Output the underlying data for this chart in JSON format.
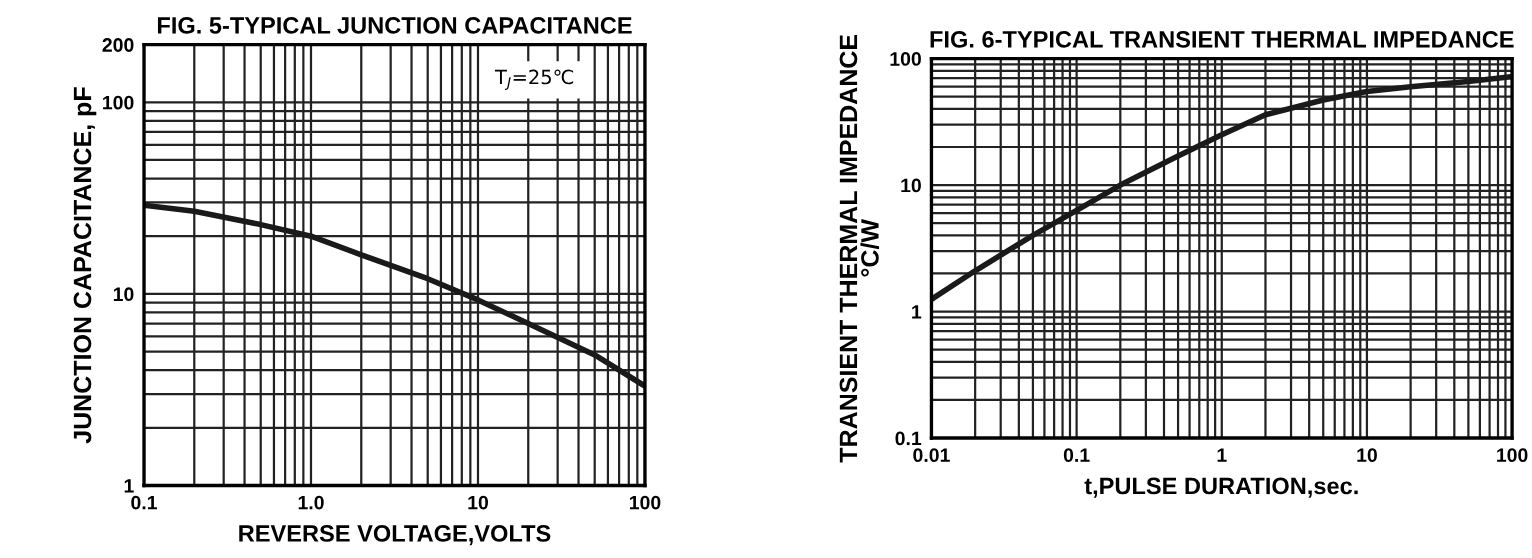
{
  "chart_data": [
    {
      "type": "line",
      "title": "FIG. 5-TYPICAL JUNCTION CAPACITANCE",
      "xlabel": "REVERSE VOLTAGE,VOLTS",
      "ylabel": "JUNCTION CAPACITANCE, pF",
      "log": "xy",
      "grid": true,
      "legend": false,
      "marker": "none",
      "line_style": "solid",
      "xlim": [
        0.1,
        100
      ],
      "ylim": [
        1,
        200
      ],
      "xticks": [
        0.1,
        {
          "value": 1,
          "label": "1.0"
        },
        10,
        100
      ],
      "yticks": [
        1,
        10,
        100,
        200
      ],
      "annotations": [
        "T$_{J}$=25℃"
      ],
      "series": [
        {
          "color": "#1a1a1a",
          "x": [
            0.1,
            0.2,
            0.5,
            1,
            2,
            5,
            10,
            20,
            50,
            100
          ],
          "values": [
            29,
            27,
            23,
            20,
            16,
            12,
            9.3,
            7,
            4.8,
            3.3
          ]
        }
      ]
    },
    {
      "type": "line",
      "title": "FIG. 6-TYPICAL TRANSIENT THERMAL IMPEDANCE",
      "xlabel": "t,PULSE DURATION,sec.",
      "ylabel": "TRANSIENT THERMAL IMPEDANCE\n°C/W",
      "log": "xy",
      "grid": true,
      "legend": false,
      "marker": "none",
      "line_style": "solid",
      "xlim": [
        0.01,
        100
      ],
      "ylim": [
        0.1,
        100
      ],
      "xticks": [
        0.01,
        0.1,
        1,
        10,
        100
      ],
      "yticks": [
        0.1,
        1,
        10,
        100
      ],
      "series": [
        {
          "color": "#1a1a1a",
          "x": [
            0.01,
            0.02,
            0.05,
            0.1,
            0.2,
            0.5,
            1,
            2,
            5,
            10,
            20,
            50,
            100
          ],
          "values": [
            1.25,
            2.1,
            4,
            6.3,
            10,
            17,
            25,
            36,
            47,
            55,
            60,
            66,
            72
          ]
        }
      ]
    }
  ]
}
